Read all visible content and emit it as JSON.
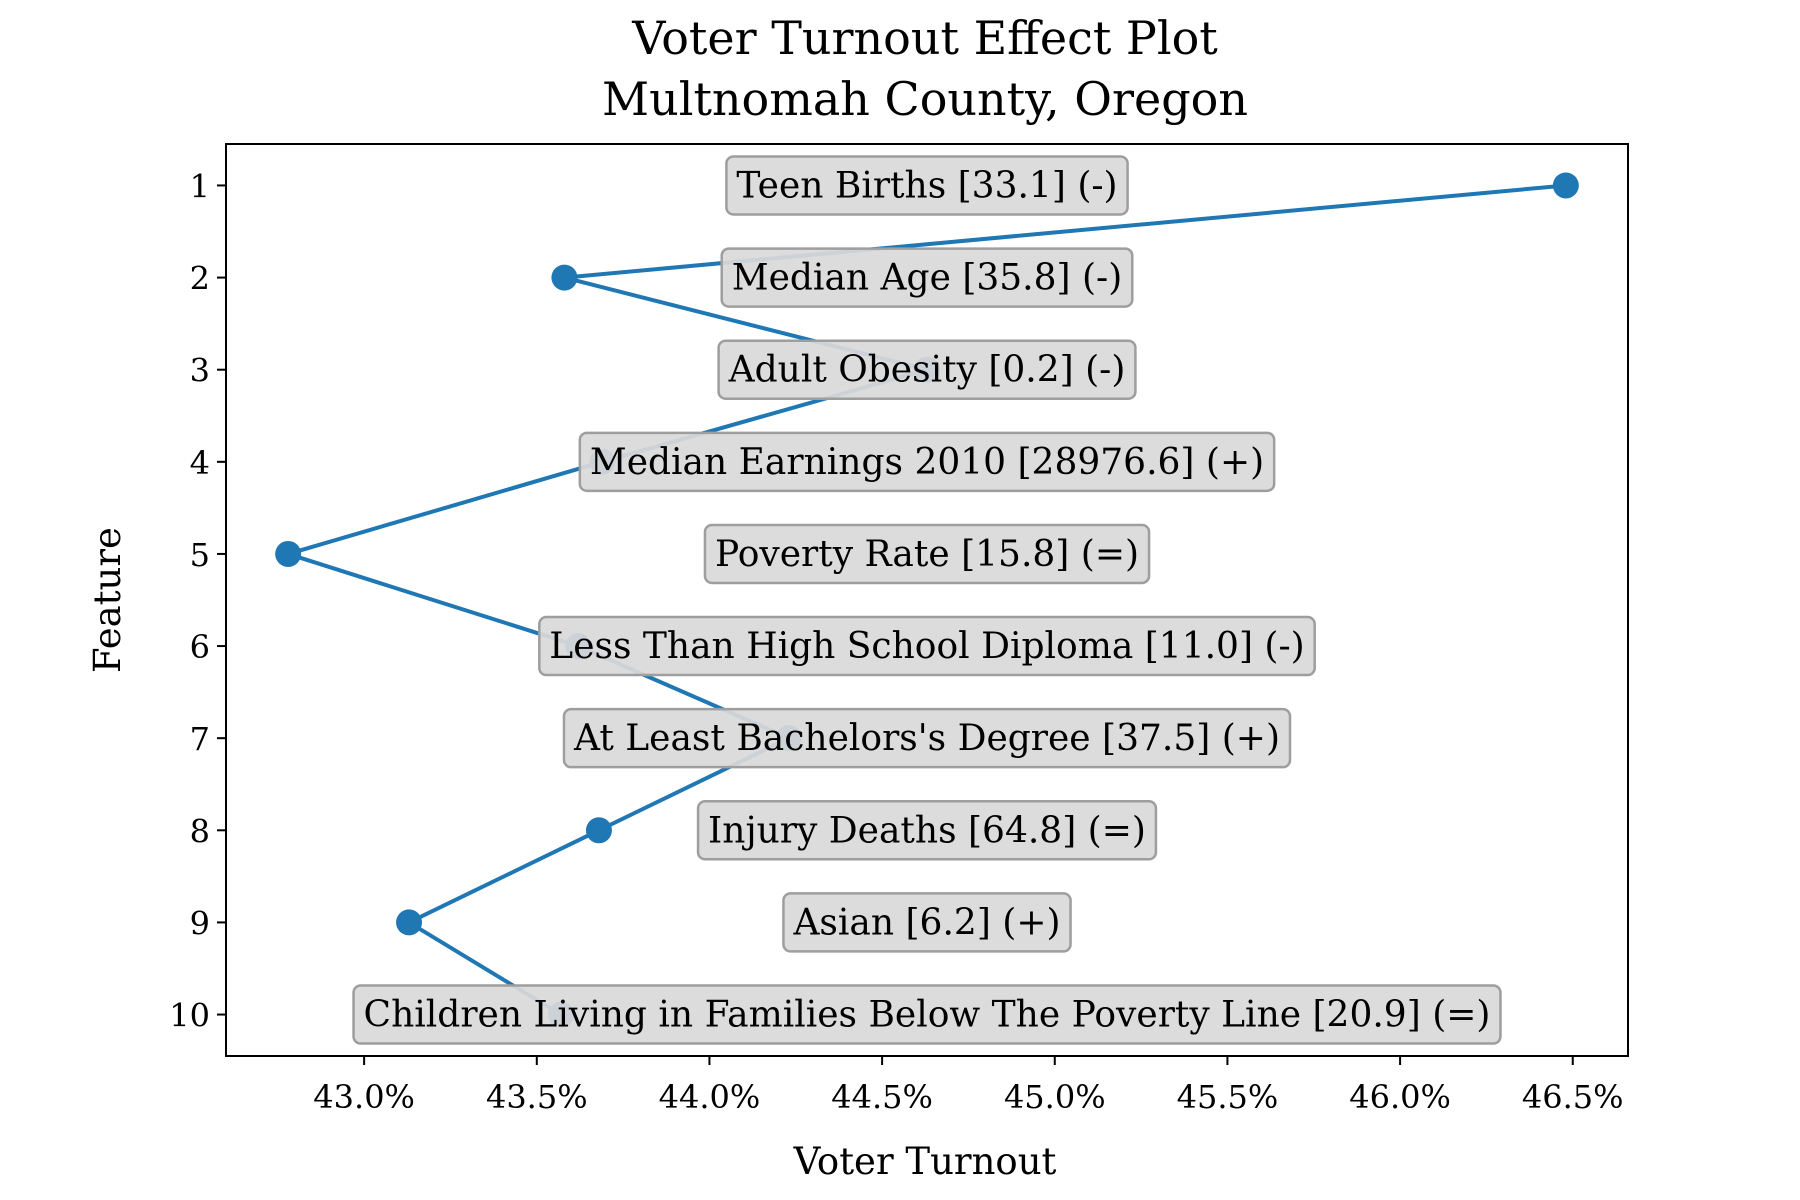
{
  "chart_data": {
    "type": "line",
    "title": [
      "Voter Turnout Effect Plot",
      "Multnomah County, Oregon"
    ],
    "xlabel": "Voter Turnout",
    "ylabel": "Feature",
    "xlim": [
      42.6,
      46.66
    ],
    "ylim": [
      10.45,
      0.55
    ],
    "x_ticks": [
      43.0,
      43.5,
      44.0,
      44.5,
      45.0,
      45.5,
      46.0,
      46.5
    ],
    "x_tick_labels": [
      "43.0%",
      "43.5%",
      "44.0%",
      "44.5%",
      "45.0%",
      "45.5%",
      "46.0%",
      "46.5%"
    ],
    "y_ticks": [
      1,
      2,
      3,
      4,
      5,
      6,
      7,
      8,
      9,
      10
    ],
    "y_tick_labels": [
      "1",
      "2",
      "3",
      "4",
      "5",
      "6",
      "7",
      "8",
      "9",
      "10"
    ],
    "grid": false,
    "series": [
      {
        "color": "#1f77b4",
        "points": [
          {
            "x": 46.48,
            "y": 1
          },
          {
            "x": 43.58,
            "y": 2
          },
          {
            "x": 44.63,
            "y": 3
          },
          {
            "x": 43.69,
            "y": 4
          },
          {
            "x": 42.78,
            "y": 5
          },
          {
            "x": 43.62,
            "y": 6
          },
          {
            "x": 44.23,
            "y": 7
          },
          {
            "x": 43.68,
            "y": 8
          },
          {
            "x": 43.13,
            "y": 9
          },
          {
            "x": 43.57,
            "y": 10
          }
        ]
      }
    ],
    "annotations": [
      {
        "y": 1,
        "text": "Teen Births [33.1] (-)"
      },
      {
        "y": 2,
        "text": "Median Age [35.8] (-)"
      },
      {
        "y": 3,
        "text": "Adult Obesity [0.2] (-)"
      },
      {
        "y": 4,
        "text": "Median Earnings 2010 [28976.6] (+)"
      },
      {
        "y": 5,
        "text": "Poverty Rate [15.8] (=)"
      },
      {
        "y": 6,
        "text": "Less Than High School Diploma [11.0] (-)"
      },
      {
        "y": 7,
        "text": "At Least Bachelors's Degree [37.5] (+)"
      },
      {
        "y": 8,
        "text": "Injury Deaths [64.8] (=)"
      },
      {
        "y": 9,
        "text": "Asian [6.2] (+)"
      },
      {
        "y": 10,
        "text": "Children Living in Families Below The Poverty Line [20.9] (=)"
      }
    ],
    "annotation_style": {
      "fill": "#d9d9d9",
      "stroke": "#9e9e9e"
    }
  }
}
